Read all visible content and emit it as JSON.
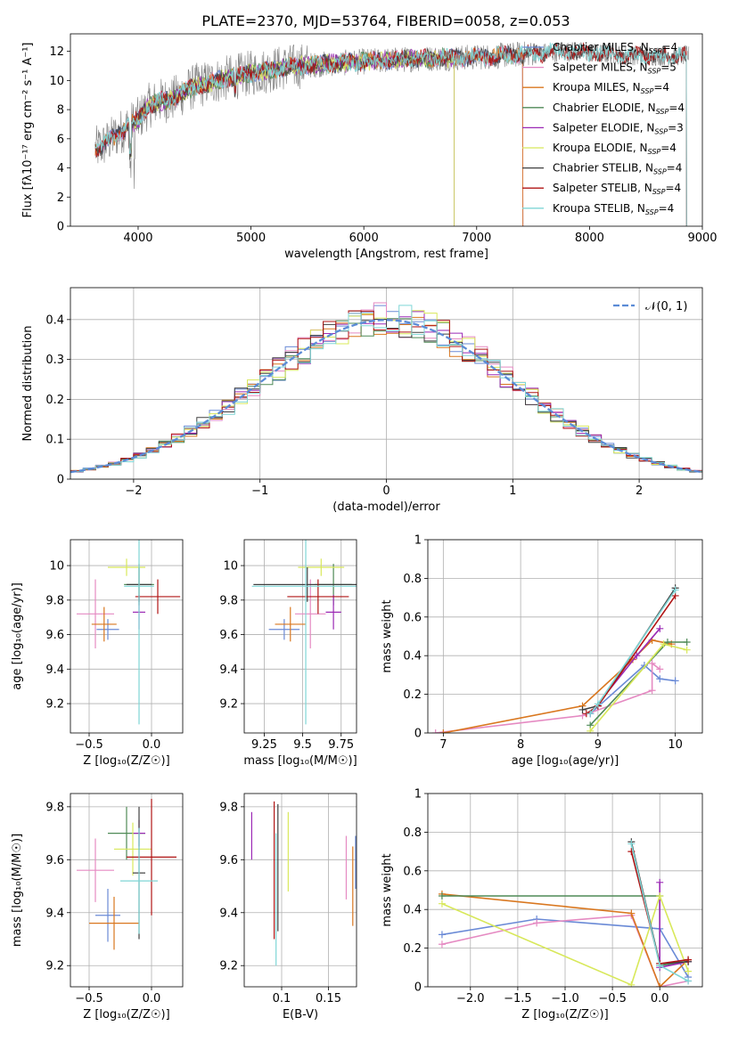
{
  "figure_title": "PLATE=2370, MJD=53764, FIBERID=0058, z=0.053",
  "colors": {
    "Chabrier MILES": "#6a8ad6",
    "Salpeter MILES": "#e58ac2",
    "Kroupa MILES": "#d9771f",
    "Chabrier ELODIE": "#4f8a57",
    "Salpeter ELODIE": "#9b29b5",
    "Kroupa ELODIE": "#d8e85a",
    "Chabrier STELIB": "#404040",
    "Salpeter STELIB": "#b01515",
    "Kroupa STELIB": "#7fd6d6",
    "data": "#808080",
    "normal": "#5b8bd6"
  },
  "chart_data": [
    {
      "id": "spectrum",
      "type": "line",
      "title": "PLATE=2370, MJD=53764, FIBERID=0058, z=0.053",
      "xlabel": "wavelength [Angstrom, rest frame]",
      "ylabel": "Flux [fλ10⁻¹⁷ erg cm⁻² s⁻¹ A⁻¹]",
      "xlim": [
        3400,
        9000
      ],
      "ylim": [
        0,
        13.2
      ],
      "xticks": [
        4000,
        5000,
        6000,
        7000,
        8000,
        9000
      ],
      "yticks": [
        0,
        2,
        4,
        6,
        8,
        10,
        12
      ],
      "grid": false,
      "legend_position": "lower-right",
      "legend": [
        {
          "model": "Chabrier MILES",
          "label": "Chabrier MILES, N",
          "sub": "SSP",
          "suffix": "=4"
        },
        {
          "model": "Salpeter MILES",
          "label": "Salpeter MILES, N",
          "sub": "SSP",
          "suffix": "=5"
        },
        {
          "model": "Kroupa MILES",
          "label": "Kroupa MILES, N",
          "sub": "SSP",
          "suffix": "=4"
        },
        {
          "model": "Chabrier ELODIE",
          "label": "Chabrier ELODIE, N",
          "sub": "SSP",
          "suffix": "=4"
        },
        {
          "model": "Salpeter ELODIE",
          "label": "Salpeter ELODIE, N",
          "sub": "SSP",
          "suffix": "=3"
        },
        {
          "model": "Kroupa ELODIE",
          "label": "Kroupa ELODIE, N",
          "sub": "SSP",
          "suffix": "=4"
        },
        {
          "model": "Chabrier STELIB",
          "label": "Chabrier STELIB, N",
          "sub": "SSP",
          "suffix": "=4"
        },
        {
          "model": "Salpeter STELIB",
          "label": "Salpeter STELIB, N",
          "sub": "SSP",
          "suffix": "=4"
        },
        {
          "model": "Kroupa STELIB",
          "label": "Kroupa STELIB, N",
          "sub": "SSP",
          "suffix": "=4"
        }
      ],
      "continuum": [
        [
          3600,
          5.2
        ],
        [
          3700,
          5.6
        ],
        [
          3800,
          6.2
        ],
        [
          3900,
          6.8
        ],
        [
          4000,
          7.3
        ],
        [
          4100,
          8.3
        ],
        [
          4200,
          8.6
        ],
        [
          4300,
          8.7
        ],
        [
          4500,
          9.6
        ],
        [
          4700,
          10.0
        ],
        [
          5000,
          10.5
        ],
        [
          5300,
          10.9
        ],
        [
          5600,
          11.1
        ],
        [
          6000,
          11.3
        ],
        [
          6500,
          11.5
        ],
        [
          7000,
          11.6
        ],
        [
          7400,
          11.8
        ],
        [
          7800,
          12.0
        ],
        [
          8200,
          11.8
        ],
        [
          8500,
          11.7
        ],
        [
          8900,
          11.7
        ]
      ],
      "model_extent": {
        "Chabrier MILES": [
          3620,
          7410
        ],
        "Salpeter MILES": [
          3620,
          7410
        ],
        "Kroupa MILES": [
          3620,
          7410
        ],
        "Chabrier ELODIE": [
          3920,
          6800
        ],
        "Salpeter ELODIE": [
          3920,
          6800
        ],
        "Kroupa ELODIE": [
          3920,
          6800
        ],
        "Chabrier STELIB": [
          3620,
          8860
        ],
        "Salpeter STELIB": [
          3620,
          8860
        ],
        "Kroupa STELIB": [
          3620,
          8860
        ]
      }
    },
    {
      "id": "residuals",
      "type": "bar",
      "xlabel": "(data-model)/error",
      "ylabel": "Normed distribution",
      "xlim": [
        -2.5,
        2.5
      ],
      "ylim": [
        0,
        0.48
      ],
      "xticks": [
        -2,
        -1,
        0,
        1,
        2
      ],
      "yticks": [
        0,
        0.1,
        0.2,
        0.3,
        0.4
      ],
      "grid": true,
      "legend_position": "upper-right",
      "reference_curve": {
        "name": "𝒩(0, 1)",
        "mean": 0,
        "sigma": 1
      },
      "bin_edges_start": -2.5,
      "bin_width": 0.1
    },
    {
      "id": "age_vs_Z",
      "type": "scatter",
      "xlabel": "Z [log₁₀(Z/Z☉)]",
      "ylabel": "age  [log₁₀(age/yr)]",
      "xlim": [
        -0.65,
        0.25
      ],
      "ylim": [
        9.03,
        10.15
      ],
      "xticks": [
        -0.5,
        0.0
      ],
      "xticklabels": [
        "−0.5",
        "0.0"
      ],
      "yticks": [
        9.2,
        9.4,
        9.6,
        9.8,
        10.0
      ],
      "grid": true,
      "errorbars": [
        {
          "model": "Chabrier MILES",
          "x": -0.35,
          "xerr": 0.09,
          "y": 9.63,
          "yerr": 0.06
        },
        {
          "model": "Salpeter MILES",
          "x": -0.45,
          "xerr": 0.15,
          "y": 9.72,
          "yerr": 0.2
        },
        {
          "model": "Kroupa MILES",
          "x": -0.38,
          "xerr": 0.1,
          "y": 9.66,
          "yerr": 0.1
        },
        {
          "model": "Chabrier ELODIE",
          "x": -0.1,
          "xerr": 0.12,
          "y": 9.89,
          "yerr": 0.12
        },
        {
          "model": "Salpeter ELODIE",
          "x": -0.1,
          "xerr": 0.05,
          "y": 9.73,
          "yerr": 0.1
        },
        {
          "model": "Kroupa ELODIE",
          "x": -0.2,
          "xerr": 0.15,
          "y": 9.99,
          "yerr": 0.05
        },
        {
          "model": "Chabrier STELIB",
          "x": -0.1,
          "xerr": 0.1,
          "y": 9.89,
          "yerr": 0.1
        },
        {
          "model": "Salpeter STELIB",
          "x": 0.05,
          "xerr": 0.18,
          "y": 9.82,
          "yerr": 0.1
        },
        {
          "model": "Kroupa STELIB",
          "x": -0.1,
          "xerr": 0.12,
          "y": 9.88,
          "yerr": 0.8
        }
      ]
    },
    {
      "id": "age_vs_mass",
      "type": "scatter",
      "xlabel": "mass [log₁₀(M/M☉)]",
      "ylabel": "",
      "xlim": [
        9.12,
        9.85
      ],
      "ylim": [
        9.03,
        10.15
      ],
      "xticks": [
        9.25,
        9.5,
        9.75
      ],
      "yticks": [
        9.2,
        9.4,
        9.6,
        9.8,
        10.0
      ],
      "grid": true,
      "errorbars": [
        {
          "model": "Chabrier MILES",
          "x": 9.38,
          "xerr": 0.1,
          "y": 9.63,
          "yerr": 0.06
        },
        {
          "model": "Salpeter MILES",
          "x": 9.55,
          "xerr": 0.1,
          "y": 9.72,
          "yerr": 0.2
        },
        {
          "model": "Kroupa MILES",
          "x": 9.42,
          "xerr": 0.1,
          "y": 9.66,
          "yerr": 0.1
        },
        {
          "model": "Chabrier ELODIE",
          "x": 9.7,
          "xerr": 0.12,
          "y": 9.89,
          "yerr": 0.12
        },
        {
          "model": "Salpeter ELODIE",
          "x": 9.7,
          "xerr": 0.05,
          "y": 9.73,
          "yerr": 0.1
        },
        {
          "model": "Kroupa ELODIE",
          "x": 9.62,
          "xerr": 0.15,
          "y": 9.99,
          "yerr": 0.05
        },
        {
          "model": "Chabrier STELIB",
          "x": 9.53,
          "xerr": 0.35,
          "y": 9.89,
          "yerr": 0.1
        },
        {
          "model": "Salpeter STELIB",
          "x": 9.6,
          "xerr": 0.2,
          "y": 9.82,
          "yerr": 0.1
        },
        {
          "model": "Kroupa STELIB",
          "x": 9.52,
          "xerr": 0.35,
          "y": 9.88,
          "yerr": 0.8
        }
      ]
    },
    {
      "id": "weight_vs_age",
      "type": "line",
      "xlabel": "age  [log₁₀(age/yr)]",
      "ylabel": "mass weight",
      "xlim": [
        6.8,
        10.35
      ],
      "ylim": [
        0,
        1.0
      ],
      "xticks": [
        7,
        8,
        9,
        10
      ],
      "yticks": [
        0,
        0.2,
        0.4,
        0.6,
        0.8,
        1.0
      ],
      "grid": true,
      "series": [
        {
          "model": "Chabrier MILES",
          "points": [
            [
              8.9,
              0.1
            ],
            [
              9.6,
              0.35
            ],
            [
              9.8,
              0.28
            ],
            [
              10,
              0.27
            ]
          ]
        },
        {
          "model": "Salpeter MILES",
          "points": [
            [
              6.9,
              0
            ],
            [
              8.8,
              0.09
            ],
            [
              9.7,
              0.22
            ],
            [
              9.7,
              0.36
            ],
            [
              9.8,
              0.33
            ]
          ]
        },
        {
          "model": "Kroupa MILES",
          "points": [
            [
              7,
              0
            ],
            [
              8.8,
              0.14
            ],
            [
              9.45,
              0.38
            ],
            [
              9.7,
              0.48
            ],
            [
              9.95,
              0.46
            ]
          ]
        },
        {
          "model": "Chabrier ELODIE",
          "points": [
            [
              8.9,
              0.04
            ],
            [
              9.9,
              0.47
            ],
            [
              10.15,
              0.47
            ]
          ]
        },
        {
          "model": "Salpeter ELODIE",
          "points": [
            [
              8.9,
              0.1
            ],
            [
              9.5,
              0.4
            ],
            [
              9.8,
              0.54
            ]
          ]
        },
        {
          "model": "Kroupa ELODIE",
          "points": [
            [
              8.9,
              0.01
            ],
            [
              9.85,
              0.46
            ],
            [
              10.15,
              0.43
            ]
          ]
        },
        {
          "model": "Chabrier STELIB",
          "points": [
            [
              8.8,
              0.12
            ],
            [
              9.0,
              0.14
            ],
            [
              10.0,
              0.75
            ]
          ]
        },
        {
          "model": "Salpeter STELIB",
          "points": [
            [
              8.85,
              0.1
            ],
            [
              9.0,
              0.14
            ],
            [
              10.0,
              0.71
            ]
          ]
        },
        {
          "model": "Kroupa STELIB",
          "points": [
            [
              8.9,
              0.1
            ],
            [
              9.0,
              0.15
            ],
            [
              10.0,
              0.74
            ]
          ]
        }
      ]
    },
    {
      "id": "mass_vs_Z",
      "type": "scatter",
      "xlabel": "Z [log₁₀(Z/Z☉)]",
      "ylabel": "mass [log₁₀(M/M☉)]",
      "xlim": [
        -0.65,
        0.25
      ],
      "ylim": [
        9.12,
        9.85
      ],
      "xticks": [
        -0.5,
        0.0
      ],
      "xticklabels": [
        "−0.5",
        "0.0"
      ],
      "yticks": [
        9.2,
        9.4,
        9.6,
        9.8
      ],
      "grid": true,
      "errorbars": [
        {
          "model": "Chabrier MILES",
          "x": -0.35,
          "xerr": 0.1,
          "y": 9.39,
          "yerr": 0.1
        },
        {
          "model": "Salpeter MILES",
          "x": -0.45,
          "xerr": 0.15,
          "y": 9.56,
          "yerr": 0.12
        },
        {
          "model": "Kroupa MILES",
          "x": -0.3,
          "xerr": 0.2,
          "y": 9.36,
          "yerr": 0.1
        },
        {
          "model": "Chabrier ELODIE",
          "x": -0.2,
          "xerr": 0.15,
          "y": 9.7,
          "yerr": 0.1
        },
        {
          "model": "Salpeter ELODIE",
          "x": -0.1,
          "xerr": 0.05,
          "y": 9.7,
          "yerr": 0.05
        },
        {
          "model": "Kroupa ELODIE",
          "x": -0.15,
          "xerr": 0.15,
          "y": 9.64,
          "yerr": 0.1
        },
        {
          "model": "Chabrier STELIB",
          "x": -0.1,
          "xerr": 0.05,
          "y": 9.55,
          "yerr": 0.25
        },
        {
          "model": "Salpeter STELIB",
          "x": 0.0,
          "xerr": 0.2,
          "y": 9.61,
          "yerr": 0.22
        },
        {
          "model": "Kroupa STELIB",
          "x": -0.1,
          "xerr": 0.15,
          "y": 9.52,
          "yerr": 0.2
        }
      ]
    },
    {
      "id": "mass_vs_ebv",
      "type": "scatter",
      "xlabel": "E(B-V)",
      "ylabel": "",
      "xlim": [
        0.06,
        0.18
      ],
      "ylim": [
        9.12,
        9.85
      ],
      "xticks": [
        0.1,
        0.15
      ],
      "yticks": [
        9.2,
        9.4,
        9.6,
        9.8
      ],
      "grid": true,
      "errorbars": [
        {
          "model": "Salpeter ELODIE",
          "x": 0.068,
          "xerr": 0,
          "y": 9.69,
          "yerr": 0.09
        },
        {
          "model": "Salpeter STELIB",
          "x": 0.092,
          "xerr": 0,
          "y": 9.56,
          "yerr": 0.26
        },
        {
          "model": "Kroupa STELIB",
          "x": 0.094,
          "xerr": 0,
          "y": 9.45,
          "yerr": 0.25
        },
        {
          "model": "Chabrier STELIB",
          "x": 0.096,
          "xerr": 0,
          "y": 9.57,
          "yerr": 0.24
        },
        {
          "model": "Kroupa ELODIE",
          "x": 0.107,
          "xerr": 0,
          "y": 9.63,
          "yerr": 0.15
        },
        {
          "model": "Salpeter MILES",
          "x": 0.169,
          "xerr": 0,
          "y": 9.57,
          "yerr": 0.12
        },
        {
          "model": "Kroupa MILES",
          "x": 0.176,
          "xerr": 0,
          "y": 9.5,
          "yerr": 0.15
        },
        {
          "model": "Chabrier MILES",
          "x": 0.179,
          "xerr": 0,
          "y": 9.59,
          "yerr": 0.1
        }
      ]
    },
    {
      "id": "weight_vs_Z",
      "type": "line",
      "xlabel": "Z [log₁₀(Z/Z☉)]",
      "ylabel": "mass weight",
      "xlim": [
        -2.45,
        0.45
      ],
      "ylim": [
        0,
        1.0
      ],
      "xticks": [
        -2.0,
        -1.5,
        -1.0,
        -0.5,
        0.0
      ],
      "xticklabels": [
        "−2.0",
        "−1.5",
        "−1.0",
        "−0.5",
        "0.0"
      ],
      "yticks": [
        0,
        0.2,
        0.4,
        0.6,
        0.8,
        1.0
      ],
      "grid": true,
      "series": [
        {
          "model": "Chabrier MILES",
          "points": [
            [
              -2.3,
              0.27
            ],
            [
              -1.3,
              0.35
            ],
            [
              0,
              0.3
            ],
            [
              0.3,
              0.05
            ]
          ]
        },
        {
          "model": "Salpeter MILES",
          "points": [
            [
              -2.3,
              0.22
            ],
            [
              -1.3,
              0.33
            ],
            [
              -0.3,
              0.37
            ],
            [
              0,
              0
            ],
            [
              0.3,
              0.03
            ]
          ]
        },
        {
          "model": "Kroupa MILES",
          "points": [
            [
              -2.3,
              0.48
            ],
            [
              -0.3,
              0.38
            ],
            [
              0,
              0
            ],
            [
              0.3,
              0.14
            ]
          ]
        },
        {
          "model": "Chabrier ELODIE",
          "points": [
            [
              -2.3,
              0.47
            ],
            [
              0,
              0.47
            ],
            [
              0,
              0.11
            ],
            [
              0.3,
              0.13
            ]
          ]
        },
        {
          "model": "Salpeter ELODIE",
          "points": [
            [
              0,
              0.54
            ],
            [
              0,
              0.1
            ],
            [
              0.3,
              0.13
            ]
          ]
        },
        {
          "model": "Kroupa ELODIE",
          "points": [
            [
              -2.3,
              0.43
            ],
            [
              -0.3,
              0.01
            ],
            [
              0,
              0.47
            ],
            [
              0.3,
              0.08
            ]
          ]
        },
        {
          "model": "Chabrier STELIB",
          "points": [
            [
              -0.3,
              0.75
            ],
            [
              0,
              0.12
            ],
            [
              0.3,
              0.13
            ]
          ]
        },
        {
          "model": "Salpeter STELIB",
          "points": [
            [
              -0.3,
              0.7
            ],
            [
              0,
              0.12
            ],
            [
              0.3,
              0.14
            ]
          ]
        },
        {
          "model": "Kroupa STELIB",
          "points": [
            [
              -0.3,
              0.74
            ],
            [
              0,
              0.11
            ],
            [
              0.3,
              0.03
            ]
          ]
        }
      ]
    }
  ]
}
